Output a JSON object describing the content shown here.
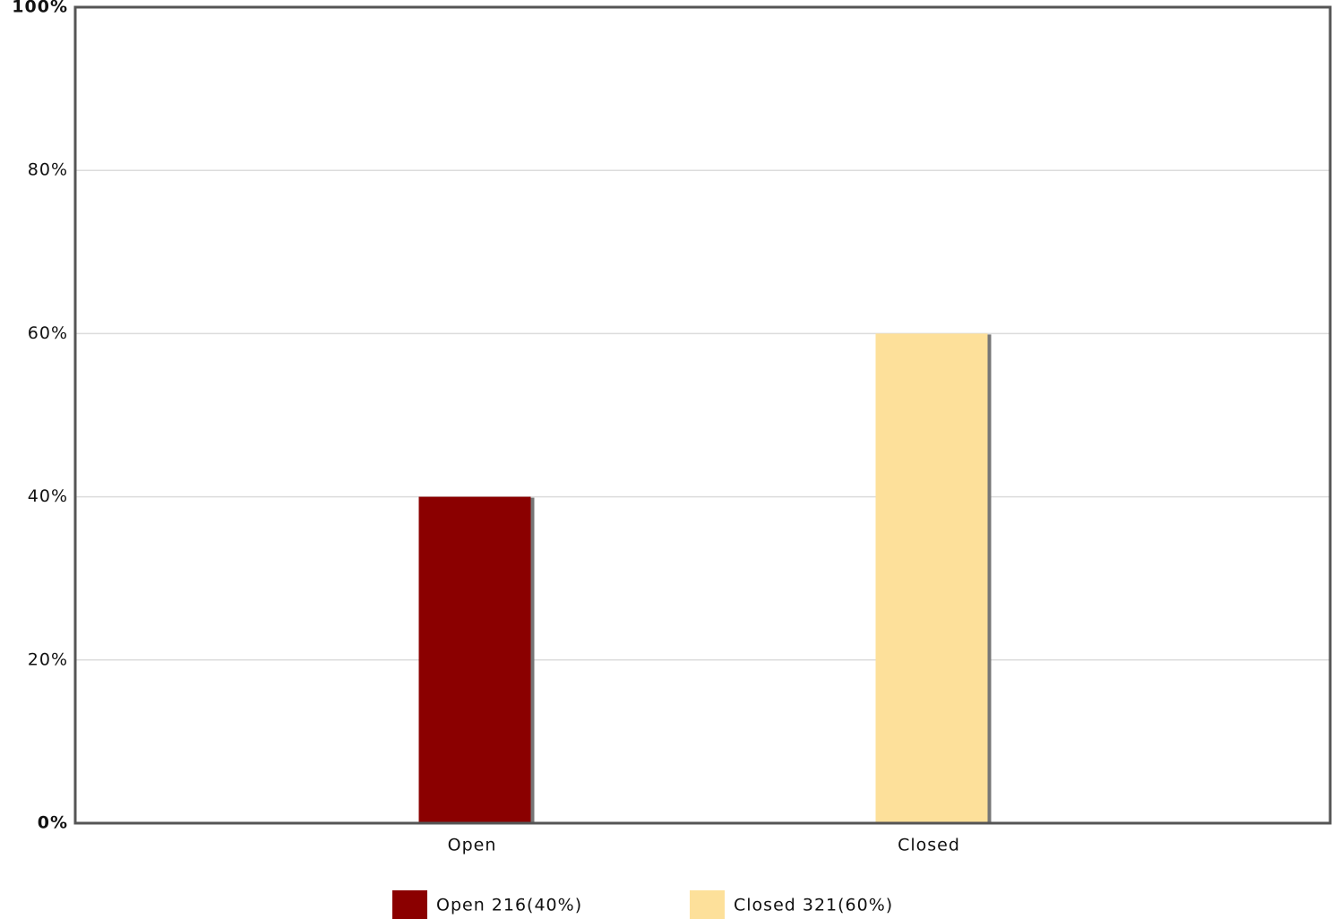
{
  "chart_data": {
    "type": "bar",
    "categories": [
      "Open",
      "Closed"
    ],
    "values": [
      40,
      60
    ],
    "colors": [
      "#8b0000",
      "#fde09a"
    ],
    "ylim": [
      0,
      100
    ],
    "yticks": [
      {
        "value": 0,
        "label": "0%"
      },
      {
        "value": 20,
        "label": "20%"
      },
      {
        "value": 40,
        "label": "40%"
      },
      {
        "value": 60,
        "label": "60%"
      },
      {
        "value": 80,
        "label": "80%"
      },
      {
        "value": 100,
        "label": "100%"
      }
    ],
    "grid": true,
    "legend": [
      "Open 216(40%)",
      "Closed 321(60%)"
    ]
  }
}
